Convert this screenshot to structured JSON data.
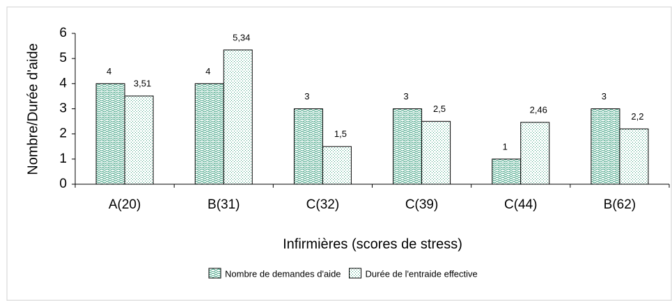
{
  "chart_data": {
    "type": "bar",
    "ylabel": "Nombre/Durée d'aide",
    "xlabel": "Infirmières (scores de stress)",
    "categories": [
      "A(20)",
      "B(31)",
      "C(32)",
      "C(39)",
      "C(44)",
      "B(62)"
    ],
    "series": [
      {
        "name": "Nombre de demandes d'aide",
        "color": "#2f9a78",
        "pattern": "wave",
        "values": [
          4,
          4,
          3,
          3,
          1,
          3
        ],
        "value_labels": [
          "4",
          "4",
          "3",
          "3",
          "1",
          "3"
        ]
      },
      {
        "name": "Durée de l'entraide effective",
        "color": "#2f9a78",
        "pattern": "dots",
        "values": [
          3.51,
          5.34,
          1.5,
          2.5,
          2.46,
          2.2
        ],
        "value_labels": [
          "3,51",
          "5,34",
          "1,5",
          "2,5",
          "2,46",
          "2,2"
        ]
      }
    ],
    "ylim": [
      0,
      6
    ],
    "yticks": [
      0,
      1,
      2,
      3,
      4,
      5,
      6
    ],
    "grid": false
  }
}
